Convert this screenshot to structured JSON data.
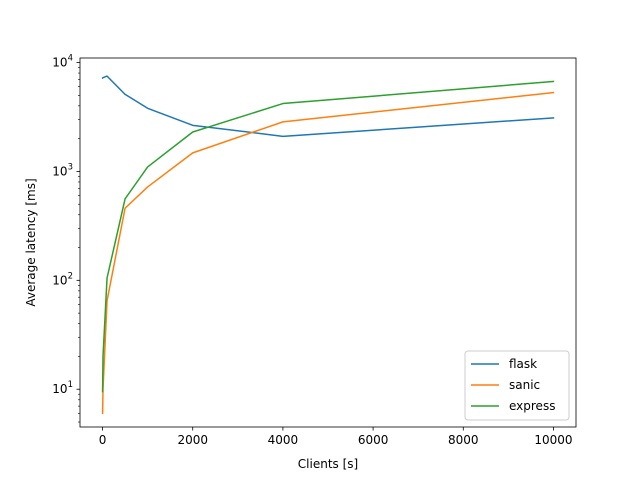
{
  "chart_data": {
    "type": "line",
    "title": "",
    "xlabel": "Clients [s]",
    "ylabel": "Average latency [ms]",
    "xscale": "linear",
    "yscale": "log",
    "xlim": [
      -500,
      10500
    ],
    "ylim": [
      4.5,
      11000
    ],
    "xticks": [
      0,
      2000,
      4000,
      6000,
      8000,
      10000
    ],
    "xtick_labels": [
      "0",
      "2000",
      "4000",
      "6000",
      "8000",
      "10000"
    ],
    "yticks": [
      10,
      100,
      1000,
      10000
    ],
    "ytick_labels": [
      {
        "base": "10",
        "exp": "1"
      },
      {
        "base": "10",
        "exp": "2"
      },
      {
        "base": "10",
        "exp": "3"
      },
      {
        "base": "10",
        "exp": "4"
      }
    ],
    "grid": false,
    "legend_position": "lower-right",
    "series": [
      {
        "name": "flask",
        "color": "#1f77b4",
        "x": [
          1,
          10,
          100,
          500,
          1000,
          2000,
          4000,
          10000
        ],
        "y": [
          7200,
          7250,
          7500,
          5100,
          3800,
          2650,
          2100,
          3100
        ]
      },
      {
        "name": "sanic",
        "color": "#ff7f0e",
        "x": [
          1,
          10,
          100,
          500,
          1000,
          2000,
          4000,
          10000
        ],
        "y": [
          6,
          10,
          65,
          460,
          720,
          1480,
          2850,
          5300
        ]
      },
      {
        "name": "express",
        "color": "#2ca02c",
        "x": [
          1,
          10,
          100,
          500,
          1000,
          2000,
          4000,
          10000
        ],
        "y": [
          9.5,
          20,
          105,
          560,
          1100,
          2300,
          4200,
          6700
        ]
      }
    ]
  }
}
